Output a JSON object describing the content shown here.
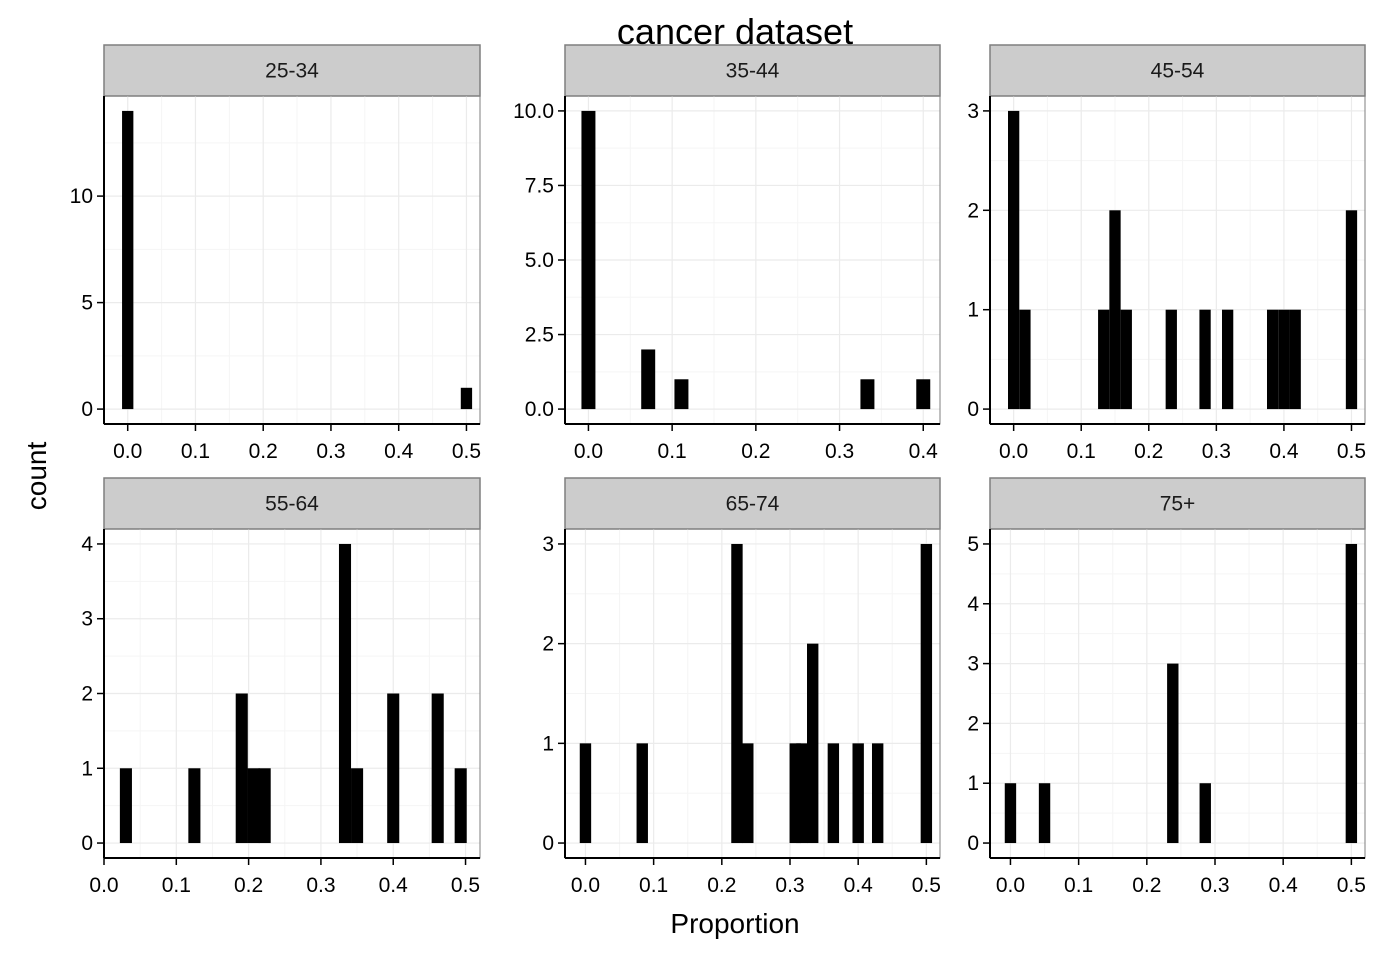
{
  "chart_data": {
    "type": "bar",
    "title": "cancer dataset",
    "xlabel": "Proportion",
    "ylabel": "count",
    "grid": true,
    "facets": [
      {
        "label": "25-34",
        "xlim": [
          -0.035,
          0.52
        ],
        "ylim": [
          -0.7,
          14.7
        ],
        "xticks": [
          "0.0",
          "0.1",
          "0.2",
          "0.3",
          "0.4",
          "0.5"
        ],
        "xtick_values": [
          0,
          0.1,
          0.2,
          0.3,
          0.4,
          0.5
        ],
        "yticks": [
          "0",
          "5",
          "10"
        ],
        "ytick_values": [
          0,
          5,
          10
        ],
        "bins": [
          {
            "x": 0.0,
            "count": 14
          },
          {
            "x": 0.5,
            "count": 1
          }
        ]
      },
      {
        "label": "35-44",
        "xlim": [
          -0.028,
          0.42
        ],
        "ylim": [
          -0.5,
          10.5
        ],
        "xticks": [
          "0.0",
          "0.1",
          "0.2",
          "0.3",
          "0.4"
        ],
        "xtick_values": [
          0,
          0.1,
          0.2,
          0.3,
          0.4
        ],
        "yticks": [
          "0.0",
          "2.5",
          "5.0",
          "7.5",
          "10.0"
        ],
        "ytick_values": [
          0,
          2.5,
          5,
          7.5,
          10
        ],
        "bins": [
          {
            "x": 0.0,
            "count": 10
          },
          {
            "x": 0.0714,
            "count": 2
          },
          {
            "x": 0.1111,
            "count": 1
          },
          {
            "x": 0.3333,
            "count": 1
          },
          {
            "x": 0.4,
            "count": 1
          }
        ]
      },
      {
        "label": "45-54",
        "xlim": [
          -0.035,
          0.52
        ],
        "ylim": [
          -0.15,
          3.15
        ],
        "xticks": [
          "0.0",
          "0.1",
          "0.2",
          "0.3",
          "0.4",
          "0.5"
        ],
        "xtick_values": [
          0,
          0.1,
          0.2,
          0.3,
          0.4,
          0.5
        ],
        "yticks": [
          "0",
          "1",
          "2",
          "3"
        ],
        "ytick_values": [
          0,
          1,
          2,
          3
        ],
        "bins": [
          {
            "x": 0.0,
            "count": 3
          },
          {
            "x": 0.0167,
            "count": 1
          },
          {
            "x": 0.1333,
            "count": 1
          },
          {
            "x": 0.15,
            "count": 2
          },
          {
            "x": 0.1667,
            "count": 1
          },
          {
            "x": 0.2333,
            "count": 1
          },
          {
            "x": 0.2833,
            "count": 1
          },
          {
            "x": 0.3167,
            "count": 1
          },
          {
            "x": 0.3833,
            "count": 1
          },
          {
            "x": 0.4,
            "count": 1
          },
          {
            "x": 0.4167,
            "count": 1
          },
          {
            "x": 0.5,
            "count": 2
          }
        ]
      },
      {
        "label": "55-64",
        "xlim": [
          0.0,
          0.52
        ],
        "ylim": [
          -0.2,
          4.2
        ],
        "xticks": [
          "0.0",
          "0.1",
          "0.2",
          "0.3",
          "0.4",
          "0.5"
        ],
        "xtick_values": [
          0,
          0.1,
          0.2,
          0.3,
          0.4,
          0.5
        ],
        "yticks": [
          "0",
          "1",
          "2",
          "3",
          "4"
        ],
        "ytick_values": [
          0,
          1,
          2,
          3,
          4
        ],
        "bins": [
          {
            "x": 0.0303,
            "count": 1
          },
          {
            "x": 0.125,
            "count": 1
          },
          {
            "x": 0.1905,
            "count": 2
          },
          {
            "x": 0.2069,
            "count": 1
          },
          {
            "x": 0.2222,
            "count": 1
          },
          {
            "x": 0.3333,
            "count": 4
          },
          {
            "x": 0.35,
            "count": 1
          },
          {
            "x": 0.4,
            "count": 2
          },
          {
            "x": 0.4615,
            "count": 2
          },
          {
            "x": 0.4933,
            "count": 1
          }
        ]
      },
      {
        "label": "65-74",
        "xlim": [
          -0.03,
          0.52
        ],
        "ylim": [
          -0.15,
          3.15
        ],
        "xticks": [
          "0.0",
          "0.1",
          "0.2",
          "0.3",
          "0.4",
          "0.5"
        ],
        "xtick_values": [
          0,
          0.1,
          0.2,
          0.3,
          0.4,
          0.5
        ],
        "yticks": [
          "0",
          "1",
          "2",
          "3"
        ],
        "ytick_values": [
          0,
          1,
          2,
          3
        ],
        "bins": [
          {
            "x": 0.0,
            "count": 1
          },
          {
            "x": 0.0833,
            "count": 1
          },
          {
            "x": 0.2222,
            "count": 3
          },
          {
            "x": 0.2381,
            "count": 1
          },
          {
            "x": 0.3077,
            "count": 1
          },
          {
            "x": 0.3333,
            "count": 2
          },
          {
            "x": 0.3175,
            "count": 1
          },
          {
            "x": 0.3636,
            "count": 1
          },
          {
            "x": 0.4,
            "count": 1
          },
          {
            "x": 0.4286,
            "count": 1
          },
          {
            "x": 0.5,
            "count": 3
          }
        ]
      },
      {
        "label": "75+",
        "xlim": [
          -0.03,
          0.52
        ],
        "ylim": [
          -0.25,
          5.25
        ],
        "xticks": [
          "0.0",
          "0.1",
          "0.2",
          "0.3",
          "0.4",
          "0.5"
        ],
        "xtick_values": [
          0,
          0.1,
          0.2,
          0.3,
          0.4,
          0.5
        ],
        "yticks": [
          "0",
          "1",
          "2",
          "3",
          "4",
          "5"
        ],
        "ytick_values": [
          0,
          1,
          2,
          3,
          4,
          5
        ],
        "bins": [
          {
            "x": 0.0,
            "count": 1
          },
          {
            "x": 0.05,
            "count": 1
          },
          {
            "x": 0.2381,
            "count": 3
          },
          {
            "x": 0.2857,
            "count": 1
          },
          {
            "x": 0.5,
            "count": 5
          }
        ]
      }
    ]
  },
  "colors": {
    "bar": "#000000",
    "strip_fill": "#cccccc",
    "strip_border": "#7f7f7f",
    "grid_major": "#ebebeb",
    "grid_minor": "#f5f5f5",
    "axis_line": "#000000"
  }
}
